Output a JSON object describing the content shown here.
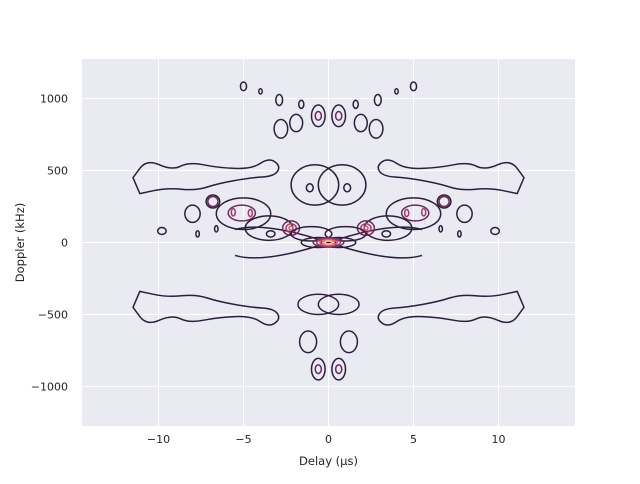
{
  "chart_data": {
    "type": "contour",
    "title": "",
    "xlabel": "Delay (µs)",
    "ylabel": "Doppler (kHz)",
    "xlim": [
      -14.5,
      14.5
    ],
    "ylim": [
      -1275,
      1275
    ],
    "xticks": [
      -10,
      -5,
      0,
      5,
      10
    ],
    "xtick_labels": [
      "−10",
      "−5",
      "0",
      "5",
      "10"
    ],
    "yticks": [
      -1000,
      -500,
      0,
      500,
      1000
    ],
    "ytick_labels": [
      "−1000",
      "−500",
      "0",
      "500",
      "1000"
    ],
    "grid": true,
    "background": "#eaeaf2",
    "colormap": [
      "#2d1e3e",
      "#6b2a5c",
      "#a73a6e",
      "#d55a6a",
      "#ee8a6a",
      "#f6c7a2"
    ],
    "peak": {
      "x": 0,
      "y": 0
    },
    "contours": [
      {
        "level": 0,
        "type": "ellipse",
        "cx": -5.0,
        "cy": 1085,
        "rx": 0.18,
        "ry": 30
      },
      {
        "level": 0,
        "type": "ellipse",
        "cx": 5.0,
        "cy": 1085,
        "rx": 0.18,
        "ry": 30
      },
      {
        "level": 0,
        "type": "ellipse",
        "cx": -4.0,
        "cy": 1050,
        "rx": 0.1,
        "ry": 18
      },
      {
        "level": 0,
        "type": "ellipse",
        "cx": 4.0,
        "cy": 1050,
        "rx": 0.1,
        "ry": 18
      },
      {
        "level": 0,
        "type": "ellipse",
        "cx": -2.9,
        "cy": 990,
        "rx": 0.2,
        "ry": 38
      },
      {
        "level": 0,
        "type": "ellipse",
        "cx": 2.9,
        "cy": 990,
        "rx": 0.2,
        "ry": 38
      },
      {
        "level": 0,
        "type": "ellipse",
        "cx": -1.6,
        "cy": 960,
        "rx": 0.15,
        "ry": 28
      },
      {
        "level": 0,
        "type": "ellipse",
        "cx": 1.6,
        "cy": 960,
        "rx": 0.15,
        "ry": 28
      },
      {
        "level": 0,
        "type": "ellipse",
        "cx": -0.6,
        "cy": 880,
        "rx": 0.4,
        "ry": 75
      },
      {
        "level": 1,
        "type": "ellipse",
        "cx": -0.6,
        "cy": 880,
        "rx": 0.18,
        "ry": 30
      },
      {
        "level": 0,
        "type": "ellipse",
        "cx": 0.6,
        "cy": 880,
        "rx": 0.4,
        "ry": 75
      },
      {
        "level": 1,
        "type": "ellipse",
        "cx": 0.6,
        "cy": 880,
        "rx": 0.18,
        "ry": 30
      },
      {
        "level": 0,
        "type": "ellipse",
        "cx": -1.9,
        "cy": 830,
        "rx": 0.38,
        "ry": 60
      },
      {
        "level": 0,
        "type": "ellipse",
        "cx": 1.9,
        "cy": 830,
        "rx": 0.38,
        "ry": 60
      },
      {
        "level": 0,
        "type": "ellipse",
        "cx": -2.8,
        "cy": 790,
        "rx": 0.4,
        "ry": 65
      },
      {
        "level": 0,
        "type": "ellipse",
        "cx": 2.8,
        "cy": 790,
        "rx": 0.4,
        "ry": 65
      },
      {
        "level": 0,
        "type": "ellipse",
        "cx": -0.8,
        "cy": 400,
        "rx": 1.4,
        "ry": 140
      },
      {
        "level": 0,
        "type": "ellipse",
        "cx": 0.8,
        "cy": 400,
        "rx": 1.4,
        "ry": 140
      },
      {
        "level": 0,
        "type": "ellipse",
        "cx": -1.1,
        "cy": 380,
        "rx": 0.2,
        "ry": 28
      },
      {
        "level": 0,
        "type": "ellipse",
        "cx": 1.1,
        "cy": 380,
        "rx": 0.2,
        "ry": 28
      },
      {
        "level": 0,
        "type": "ellipse",
        "cx": -6.8,
        "cy": 285,
        "rx": 0.4,
        "ry": 45
      },
      {
        "level": 1,
        "type": "ellipse",
        "cx": -6.8,
        "cy": 285,
        "rx": 0.3,
        "ry": 35
      },
      {
        "level": 0,
        "type": "ellipse",
        "cx": 6.8,
        "cy": 285,
        "rx": 0.4,
        "ry": 45
      },
      {
        "level": 1,
        "type": "ellipse",
        "cx": 6.8,
        "cy": 285,
        "rx": 0.3,
        "ry": 35
      },
      {
        "level": 0,
        "type": "ellipse",
        "cx": -8.0,
        "cy": 200,
        "rx": 0.45,
        "ry": 60
      },
      {
        "level": 0,
        "type": "ellipse",
        "cx": 8.0,
        "cy": 200,
        "rx": 0.45,
        "ry": 60
      },
      {
        "level": 0,
        "type": "ellipse",
        "cx": -5.0,
        "cy": 200,
        "rx": 1.6,
        "ry": 110
      },
      {
        "level": 0,
        "type": "ellipse",
        "cx": 5.0,
        "cy": 200,
        "rx": 1.6,
        "ry": 110
      },
      {
        "level": 1,
        "type": "ellipse",
        "cx": -5.1,
        "cy": 205,
        "rx": 0.8,
        "ry": 55
      },
      {
        "level": 1,
        "type": "ellipse",
        "cx": 5.1,
        "cy": 205,
        "rx": 0.8,
        "ry": 55
      },
      {
        "level": 2,
        "type": "ellipse",
        "cx": -5.6,
        "cy": 210,
        "rx": 0.12,
        "ry": 25
      },
      {
        "level": 2,
        "type": "ellipse",
        "cx": 5.6,
        "cy": 210,
        "rx": 0.12,
        "ry": 25
      },
      {
        "level": 2,
        "type": "ellipse",
        "cx": -4.6,
        "cy": 205,
        "rx": 0.12,
        "ry": 25
      },
      {
        "level": 2,
        "type": "ellipse",
        "cx": 4.6,
        "cy": 205,
        "rx": 0.12,
        "ry": 25
      },
      {
        "level": 0,
        "type": "ellipse",
        "cx": -3.5,
        "cy": 100,
        "rx": 1.4,
        "ry": 85
      },
      {
        "level": 0,
        "type": "ellipse",
        "cx": 3.5,
        "cy": 100,
        "rx": 1.4,
        "ry": 85
      },
      {
        "level": 1,
        "type": "ellipse",
        "cx": -2.2,
        "cy": 100,
        "rx": 0.5,
        "ry": 50
      },
      {
        "level": 2,
        "type": "ellipse",
        "cx": -2.2,
        "cy": 100,
        "rx": 0.3,
        "ry": 30
      },
      {
        "level": 3,
        "type": "ellipse",
        "cx": -2.2,
        "cy": 100,
        "rx": 0.12,
        "ry": 14
      },
      {
        "level": 1,
        "type": "ellipse",
        "cx": 2.2,
        "cy": 100,
        "rx": 0.5,
        "ry": 50
      },
      {
        "level": 2,
        "type": "ellipse",
        "cx": 2.2,
        "cy": 100,
        "rx": 0.3,
        "ry": 30
      },
      {
        "level": 3,
        "type": "ellipse",
        "cx": 2.2,
        "cy": 100,
        "rx": 0.12,
        "ry": 14
      },
      {
        "level": 0,
        "type": "ellipse",
        "cx": -3.4,
        "cy": 60,
        "rx": 0.25,
        "ry": 22
      },
      {
        "level": 0,
        "type": "ellipse",
        "cx": 3.4,
        "cy": 60,
        "rx": 0.25,
        "ry": 22
      },
      {
        "level": 0,
        "type": "ellipse",
        "cx": -6.6,
        "cy": 95,
        "rx": 0.1,
        "ry": 22
      },
      {
        "level": 0,
        "type": "ellipse",
        "cx": 6.6,
        "cy": 95,
        "rx": 0.1,
        "ry": 22
      },
      {
        "level": 0,
        "type": "ellipse",
        "cx": -7.7,
        "cy": 60,
        "rx": 0.1,
        "ry": 22
      },
      {
        "level": 0,
        "type": "ellipse",
        "cx": 7.7,
        "cy": 60,
        "rx": 0.1,
        "ry": 22
      },
      {
        "level": 0,
        "type": "ellipse",
        "cx": -9.8,
        "cy": 80,
        "rx": 0.25,
        "ry": 24
      },
      {
        "level": 0,
        "type": "ellipse",
        "cx": 9.8,
        "cy": 80,
        "rx": 0.25,
        "ry": 24
      },
      {
        "level": 0,
        "type": "ellipse",
        "cx": -1.0,
        "cy": 60,
        "rx": 1.2,
        "ry": 50
      },
      {
        "level": 0,
        "type": "ellipse",
        "cx": 1.0,
        "cy": 60,
        "rx": 1.2,
        "ry": 50
      },
      {
        "level": 0,
        "type": "ellipse",
        "cx": -0.6,
        "cy": 0,
        "rx": 1.0,
        "ry": 35
      },
      {
        "level": 0,
        "type": "ellipse",
        "cx": 0.6,
        "cy": 0,
        "rx": 1.0,
        "ry": 35
      },
      {
        "level": 1,
        "type": "ellipse",
        "cx": 0,
        "cy": 0,
        "rx": 0.9,
        "ry": 32
      },
      {
        "level": 2,
        "type": "ellipse",
        "cx": 0,
        "cy": 0,
        "rx": 0.7,
        "ry": 26
      },
      {
        "level": 3,
        "type": "ellipse",
        "cx": 0,
        "cy": 0,
        "rx": 0.5,
        "ry": 20
      },
      {
        "level": 4,
        "type": "ellipse",
        "cx": 0,
        "cy": 0,
        "rx": 0.35,
        "ry": 15
      },
      {
        "level": 5,
        "type": "ellipse",
        "cx": 0,
        "cy": 0,
        "rx": 0.2,
        "ry": 9
      },
      {
        "level": 0,
        "type": "ellipse",
        "cx": -0.6,
        "cy": -430,
        "rx": 1.2,
        "ry": 70
      },
      {
        "level": 0,
        "type": "ellipse",
        "cx": 0.6,
        "cy": -430,
        "rx": 1.2,
        "ry": 70
      },
      {
        "level": 0,
        "type": "ellipse",
        "cx": -1.2,
        "cy": -690,
        "rx": 0.5,
        "ry": 75
      },
      {
        "level": 0,
        "type": "ellipse",
        "cx": 1.2,
        "cy": -690,
        "rx": 0.5,
        "ry": 75
      },
      {
        "level": 0,
        "type": "ellipse",
        "cx": -0.6,
        "cy": -880,
        "rx": 0.4,
        "ry": 75
      },
      {
        "level": 1,
        "type": "ellipse",
        "cx": -0.6,
        "cy": -880,
        "rx": 0.18,
        "ry": 30
      },
      {
        "level": 0,
        "type": "ellipse",
        "cx": 0.6,
        "cy": -880,
        "rx": 0.4,
        "ry": 75
      },
      {
        "level": 1,
        "type": "ellipse",
        "cx": 0.6,
        "cy": -880,
        "rx": 0.18,
        "ry": 30
      }
    ],
    "outlines": [
      {
        "level": 0,
        "side": -1,
        "y0": 650,
        "points": [
          [
            -11.5,
            450
          ],
          [
            -10.7,
            580
          ],
          [
            -9.2,
            500
          ],
          [
            -8.2,
            560
          ],
          [
            -6.5,
            520
          ],
          [
            -4.5,
            510
          ],
          [
            -3.5,
            590
          ],
          [
            -2.8,
            530
          ],
          [
            -3.2,
            460
          ],
          [
            -4.6,
            450
          ],
          [
            -6.5,
            410
          ],
          [
            -7.8,
            360
          ],
          [
            -9.5,
            380
          ],
          [
            -11.1,
            340
          ]
        ]
      },
      {
        "level": 0,
        "side": 1,
        "y0": 650,
        "points": [
          [
            11.5,
            450
          ],
          [
            10.7,
            580
          ],
          [
            9.2,
            500
          ],
          [
            8.2,
            560
          ],
          [
            6.5,
            520
          ],
          [
            4.5,
            510
          ],
          [
            3.5,
            590
          ],
          [
            2.8,
            530
          ],
          [
            3.2,
            460
          ],
          [
            4.6,
            450
          ],
          [
            6.5,
            410
          ],
          [
            7.8,
            360
          ],
          [
            9.5,
            380
          ],
          [
            11.1,
            340
          ]
        ]
      },
      {
        "level": 0,
        "side": -1,
        "y0": -650,
        "points": [
          [
            -11.5,
            -450
          ],
          [
            -10.7,
            -580
          ],
          [
            -9.2,
            -500
          ],
          [
            -8.2,
            -560
          ],
          [
            -6.5,
            -520
          ],
          [
            -4.5,
            -510
          ],
          [
            -3.5,
            -590
          ],
          [
            -2.8,
            -530
          ],
          [
            -3.2,
            -460
          ],
          [
            -4.6,
            -450
          ],
          [
            -6.5,
            -410
          ],
          [
            -7.8,
            -360
          ],
          [
            -9.5,
            -380
          ],
          [
            -11.1,
            -340
          ]
        ]
      },
      {
        "level": 0,
        "side": 1,
        "y0": -650,
        "points": [
          [
            11.5,
            -450
          ],
          [
            10.7,
            -580
          ],
          [
            9.2,
            -500
          ],
          [
            8.2,
            -560
          ],
          [
            6.5,
            -520
          ],
          [
            4.5,
            -510
          ],
          [
            3.5,
            -590
          ],
          [
            2.8,
            -530
          ],
          [
            3.2,
            -460
          ],
          [
            4.6,
            -450
          ],
          [
            6.5,
            -410
          ],
          [
            7.8,
            -360
          ],
          [
            9.5,
            -380
          ],
          [
            11.1,
            -340
          ]
        ]
      }
    ]
  }
}
